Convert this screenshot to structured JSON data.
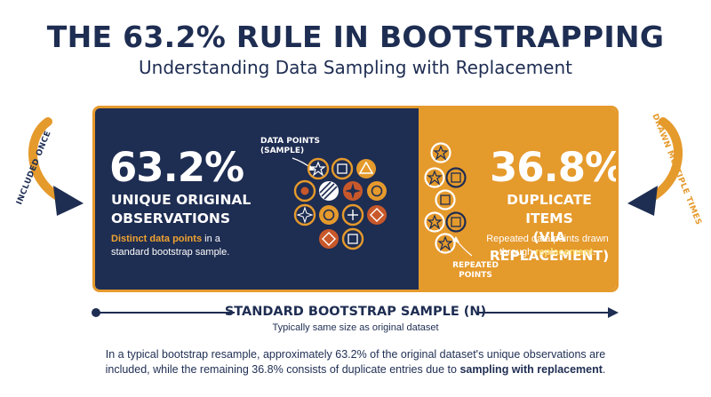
{
  "title": "THE 63.2% RULE IN BOOTSTRAPPING",
  "subtitle": "Understanding Data Sampling with Replacement",
  "left_panel": {
    "percent": "63.2%",
    "heading_line1": "UNIQUE ORIGINAL",
    "heading_line2": "OBSERVATIONS",
    "desc_highlight": "Distinct data points",
    "desc_rest1": " in a",
    "desc_line2": "standard bootstrap sample.",
    "cluster_label_line1": "DATA POINTS",
    "cluster_label_line2": "(SAMPLE)"
  },
  "right_panel": {
    "percent": "36.8%",
    "heading_line1": "DUPLICATE ITEMS",
    "heading_line2": "(VIA REPLACEMENT)",
    "desc_line1": "Repeated data points drawn",
    "desc_pre2": "through ",
    "desc_highlight": "replacement",
    "desc_post2": ".",
    "repeated_label_line1": "REPEATED",
    "repeated_label_line2": "POINTS"
  },
  "side_labels": {
    "left": "INCLUDED ONCE",
    "right": "DRAWN MULTIPLE TIMES"
  },
  "bottom": {
    "label": "STANDARD BOOTSTRAP SAMPLE (N)",
    "sublabel": "Typically same size as original dataset"
  },
  "caption": {
    "part1": "In a typical bootstrap resample, approximately 63.2% of the original dataset's unique observations are included, while the remaining 36.8% consists of duplicate entries due to ",
    "bold": "sampling with replacement",
    "part2": "."
  },
  "colors": {
    "navy": "#1e2d52",
    "orange": "#e59a2c",
    "rust": "#c8582a",
    "highlight_orange": "#f0a32f",
    "highlight_yellow": "#fde07a"
  },
  "icons": [
    "star-icon",
    "square-icon",
    "triangle-icon",
    "dot-icon",
    "hatch-icon",
    "compass-star-icon",
    "diamond-icon",
    "ring-icon",
    "plus-icon"
  ]
}
